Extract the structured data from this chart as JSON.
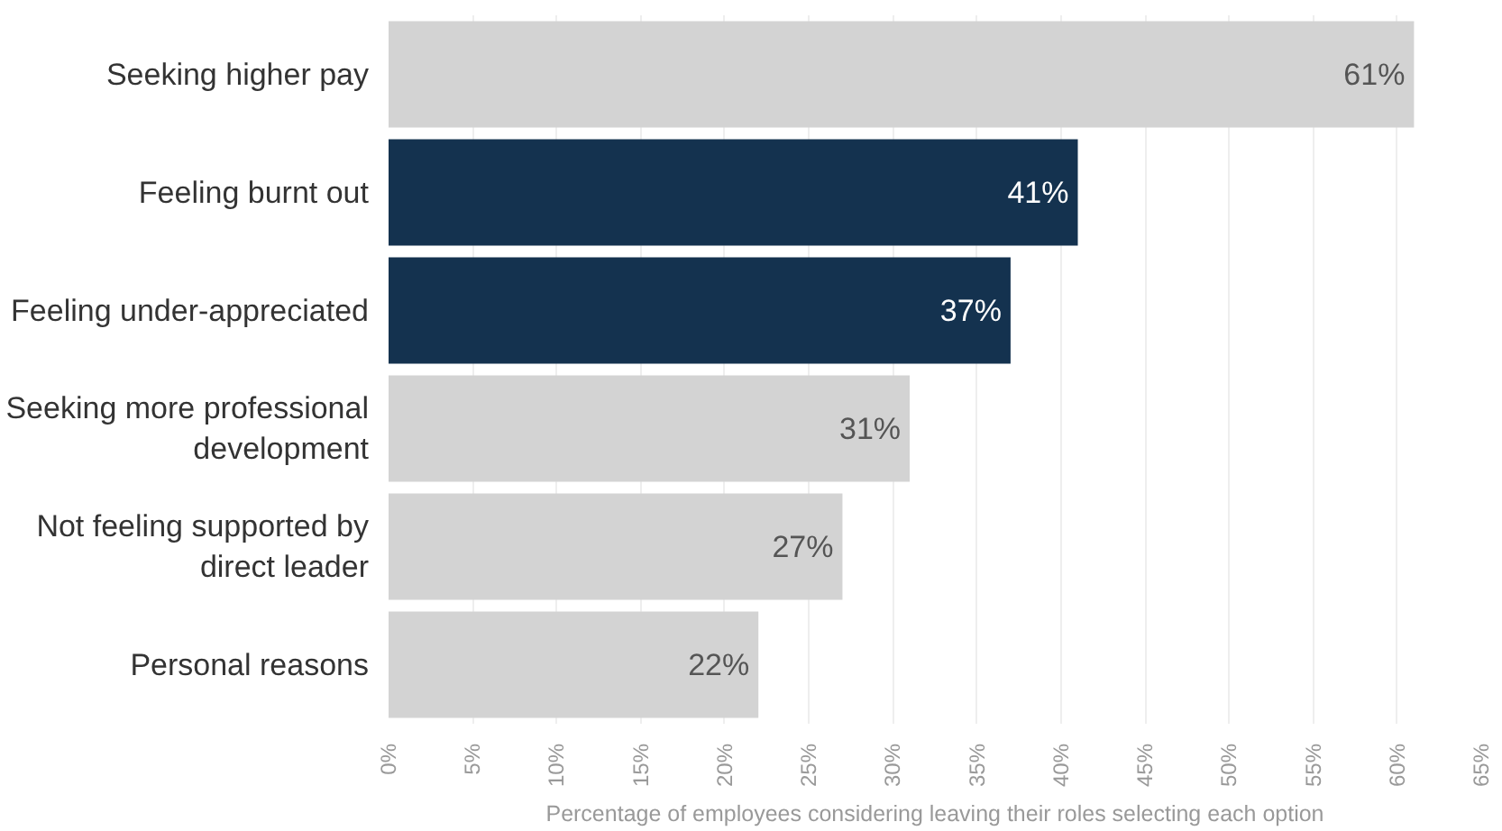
{
  "chart_data": {
    "type": "bar",
    "orientation": "horizontal",
    "xlabel": "Percentage of employees considering leaving their roles selecting each option",
    "categories": [
      "Seeking higher pay",
      "Feeling burnt out",
      "Feeling under-appreciated",
      "Seeking more professional development",
      "Not feeling supported by direct leader",
      "Personal reasons"
    ],
    "values": [
      61,
      41,
      37,
      31,
      27,
      22
    ],
    "colors": [
      "#d3d3d3",
      "#14324f",
      "#14324f",
      "#d3d3d3",
      "#d3d3d3",
      "#d3d3d3"
    ],
    "value_labels": [
      "61%",
      "41%",
      "37%",
      "31%",
      "27%",
      "22%"
    ],
    "xlim": [
      0,
      65
    ],
    "xticks": [
      {
        "value": 0,
        "label": "0%"
      },
      {
        "value": 5,
        "label": "5%"
      },
      {
        "value": 10,
        "label": "10%"
      },
      {
        "value": 15,
        "label": "15%"
      },
      {
        "value": 20,
        "label": "20%"
      },
      {
        "value": 25,
        "label": "25%"
      },
      {
        "value": 30,
        "label": "30%"
      },
      {
        "value": 35,
        "label": "35%"
      },
      {
        "value": 40,
        "label": "40%"
      },
      {
        "value": 45,
        "label": "45%"
      },
      {
        "value": 50,
        "label": "50%"
      },
      {
        "value": 55,
        "label": "55%"
      },
      {
        "value": 60,
        "label": "60%"
      },
      {
        "value": 65,
        "label": "65%"
      }
    ],
    "grid": "x"
  }
}
